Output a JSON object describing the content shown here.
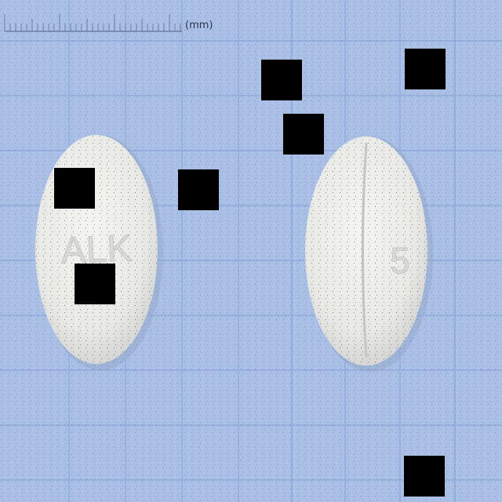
{
  "ruler": {
    "unit_label": "(mm)"
  },
  "pill_left": {
    "imprint": "ALK"
  },
  "pill_right": {
    "imprint": "5"
  },
  "colors": {
    "background": "#a9bfe6",
    "grid_line": "#8aa6da",
    "pill": "#eeeeea",
    "occluder": "#000000"
  }
}
